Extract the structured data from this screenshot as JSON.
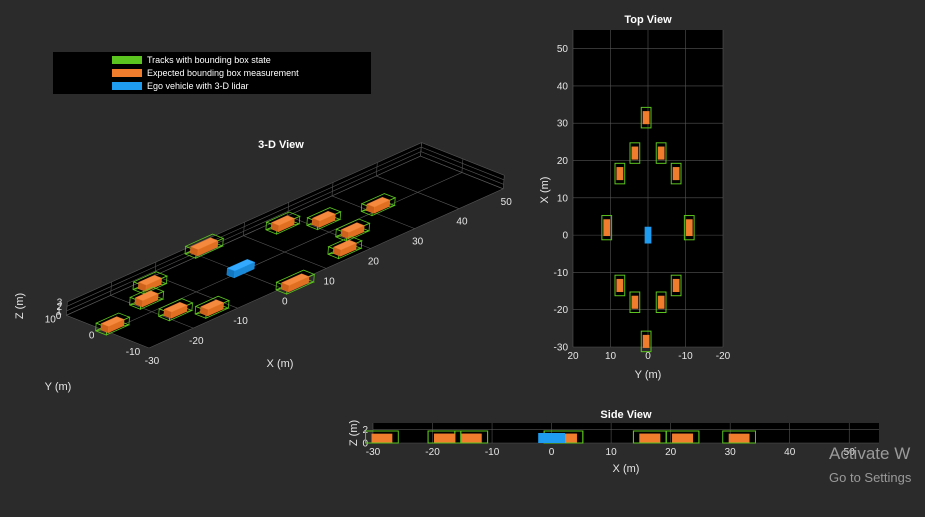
{
  "colors": {
    "background": "#2b2b2b",
    "axes_background": "#000000",
    "track": "#5cc41e",
    "measurement": "#f07c2e",
    "ego": "#1f9bf0",
    "grid": "#555555",
    "text": "#e6e6e6"
  },
  "legend": {
    "placement": "top-left",
    "entries": [
      {
        "label": "Tracks with bounding box state",
        "color": "#5cc41e"
      },
      {
        "label": "Expected bounding box measurement",
        "color": "#f07c2e"
      },
      {
        "label": "Ego vehicle with 3-D lidar",
        "color": "#1f9bf0"
      }
    ]
  },
  "watermark": {
    "line1": "Activate W",
    "line2": "Go to Settings"
  },
  "chart_data": [
    {
      "type": "scatter",
      "id": "view3d",
      "title": "3-D View",
      "xlabel": "X (m)",
      "ylabel": "Y (m)",
      "zlabel": "Z (m)",
      "xlim": [
        -30,
        50
      ],
      "ylim": [
        -10,
        10
      ],
      "zlim": [
        0,
        3
      ],
      "xticks": [
        -30,
        -20,
        -10,
        0,
        10,
        20,
        30,
        40,
        50
      ],
      "yticks": [
        -10,
        0,
        10
      ],
      "zticks": [
        0,
        1,
        2,
        3
      ],
      "grid": true
    },
    {
      "type": "scatter",
      "id": "topview",
      "title": "Top View",
      "xlabel": "Y (m)",
      "ylabel": "X (m)",
      "xlim": [
        20,
        -20
      ],
      "ylim": [
        -30,
        55
      ],
      "xticks": [
        20,
        10,
        0,
        -10,
        -20
      ],
      "yticks": [
        -30,
        -20,
        -10,
        0,
        10,
        20,
        30,
        40,
        50
      ],
      "grid": true
    },
    {
      "type": "scatter",
      "id": "sideview",
      "title": "Side View",
      "xlabel": "X (m)",
      "ylabel": "Z (m)",
      "xlim": [
        -30,
        55
      ],
      "ylim": [
        0,
        3
      ],
      "xticks": [
        -30,
        -20,
        -10,
        0,
        10,
        20,
        30,
        40,
        50
      ],
      "yticks": [
        0,
        2
      ],
      "grid": true
    }
  ],
  "objects": {
    "ego": {
      "x": 0,
      "y": 0,
      "length": 4.5,
      "width": 1.8,
      "height": 1.5
    },
    "vehicles": [
      {
        "x": 31.5,
        "y": 0.5,
        "length": 3.5,
        "width": 1.8,
        "height": 1.4
      },
      {
        "x": 22,
        "y": 3.5,
        "length": 3.5,
        "width": 1.8,
        "height": 1.4
      },
      {
        "x": 22,
        "y": -3.5,
        "length": 3.5,
        "width": 1.8,
        "height": 1.4
      },
      {
        "x": 16.5,
        "y": 7.5,
        "length": 3.5,
        "width": 1.8,
        "height": 1.4
      },
      {
        "x": 16.5,
        "y": -7.5,
        "length": 3.5,
        "width": 1.8,
        "height": 1.4
      },
      {
        "x": 2,
        "y": 11,
        "length": 4.5,
        "width": 1.8,
        "height": 1.4
      },
      {
        "x": 2,
        "y": -11,
        "length": 4.5,
        "width": 1.8,
        "height": 1.4
      },
      {
        "x": -13.5,
        "y": 7.5,
        "length": 3.5,
        "width": 1.8,
        "height": 1.4
      },
      {
        "x": -13.5,
        "y": -7.5,
        "length": 3.5,
        "width": 1.8,
        "height": 1.4
      },
      {
        "x": -18,
        "y": 3.5,
        "length": 3.5,
        "width": 1.8,
        "height": 1.4
      },
      {
        "x": -18,
        "y": -3.5,
        "length": 3.5,
        "width": 1.8,
        "height": 1.4
      },
      {
        "x": -28.5,
        "y": 0.5,
        "length": 3.5,
        "width": 1.8,
        "height": 1.4
      }
    ]
  }
}
